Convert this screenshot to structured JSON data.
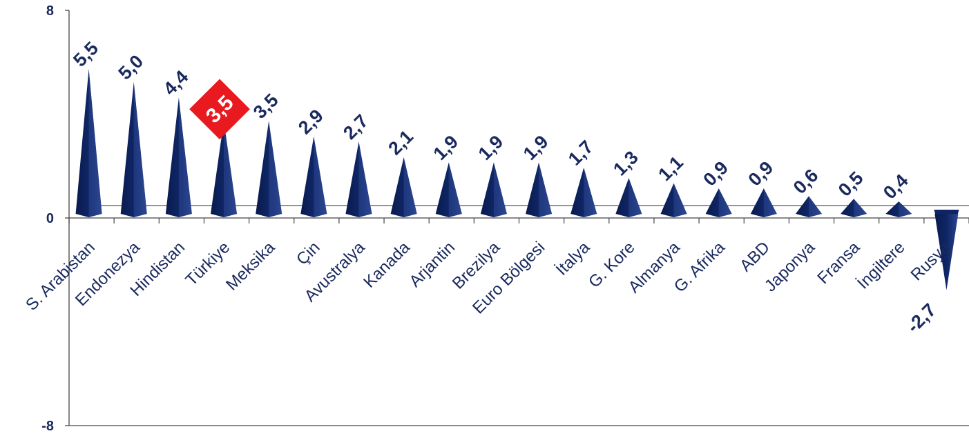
{
  "chart_data": {
    "type": "bar",
    "categories": [
      "S. Arabistan",
      "Endonezya",
      "Hindistan",
      "Türkiye",
      "Meksika",
      "Çin",
      "Avustralya",
      "Kanada",
      "Arjantin",
      "Brezilya",
      "Euro Bölgesi",
      "İtalya",
      "G. Kore",
      "Almanya",
      "G. Afrika",
      "ABD",
      "Japonya",
      "Fransa",
      "İngiltere",
      "Rusya"
    ],
    "values": [
      5.5,
      5.0,
      4.4,
      3.5,
      3.5,
      2.9,
      2.7,
      2.1,
      1.9,
      1.9,
      1.9,
      1.7,
      1.3,
      1.1,
      0.9,
      0.9,
      0.6,
      0.5,
      0.4,
      -2.7
    ],
    "value_labels": [
      "5,5",
      "5,0",
      "4,4",
      "3,5",
      "3,5",
      "2,9",
      "2,7",
      "2,1",
      "1,9",
      "1,9",
      "1,9",
      "1,7",
      "1,3",
      "1,1",
      "0,9",
      "0,9",
      "0,6",
      "0,5",
      "0,4",
      "-2,7"
    ],
    "highlight_category": "Türkiye",
    "ylim": [
      -8,
      8
    ],
    "y_ticks": [
      "8",
      "0",
      "-8"
    ],
    "grid": false,
    "colors": {
      "bar": "#0f2464",
      "bar_light": "#2b4590",
      "highlight": "#e8191f",
      "text": "#1a2a5e",
      "axis": "#444444"
    }
  }
}
